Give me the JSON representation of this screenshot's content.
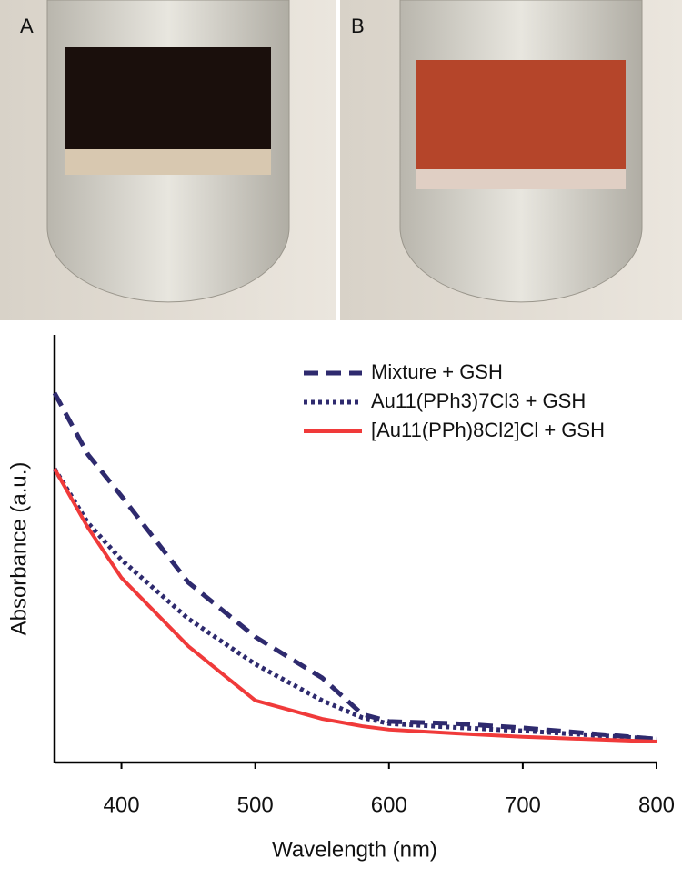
{
  "panel_labels": [
    "A",
    "B"
  ],
  "chart_data": {
    "type": "line",
    "x_label": "Wavelength (nm)",
    "y_label": "Absorbance (a.u.)",
    "x": [
      350,
      375,
      400,
      450,
      500,
      550,
      580,
      600,
      650,
      700,
      800
    ],
    "series": [
      {
        "name": "Mixture + GSH",
        "color": "#2e2a6e",
        "style": "dashed",
        "values": [
          0.864,
          0.72,
          0.623,
          0.421,
          0.294,
          0.198,
          0.113,
          0.096,
          0.091,
          0.081,
          0.055
        ]
      },
      {
        "name": "Au11(PPh3)7Cl3 + GSH",
        "color": "#2e2a6e",
        "style": "dotted",
        "values": [
          0.687,
          0.56,
          0.474,
          0.336,
          0.23,
          0.145,
          0.105,
          0.091,
          0.082,
          0.074,
          0.055
        ]
      },
      {
        "name": "[Au11(PPh)8Cl2]Cl + GSH",
        "color": "#f03a3a",
        "style": "solid",
        "values": [
          0.687,
          0.549,
          0.432,
          0.272,
          0.145,
          0.102,
          0.085,
          0.077,
          0.068,
          0.06,
          0.049
        ]
      }
    ],
    "xlim": [
      350,
      800
    ],
    "xticks": [
      400,
      500,
      600,
      700,
      800
    ],
    "ylim": [
      0,
      1
    ]
  }
}
